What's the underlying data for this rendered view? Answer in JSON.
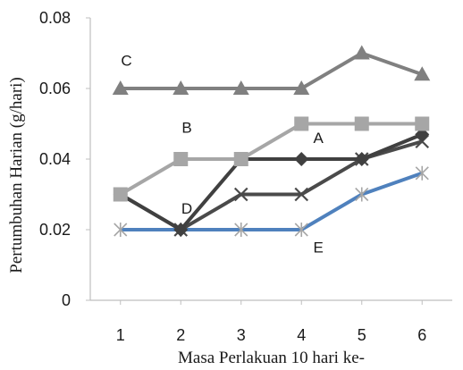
{
  "chart_data": {
    "type": "line",
    "title": "",
    "xlabel": "Masa Perlakuan 10 hari ke-",
    "ylabel": "Pertumbuhan Harian (g/hari)",
    "x": [
      1,
      2,
      3,
      4,
      5,
      6
    ],
    "x_tick_labels": [
      "1",
      "2",
      "3",
      "4",
      "5",
      "6"
    ],
    "y_tick_labels": [
      "0",
      "0.02",
      "0.04",
      "0.06",
      "0.08"
    ],
    "y_ticks": [
      0,
      0.02,
      0.04,
      0.06,
      0.08
    ],
    "ylim": [
      0,
      0.08
    ],
    "xlim": [
      0.5,
      6.5
    ],
    "grid": false,
    "legend": "none",
    "series": [
      {
        "name": "C",
        "values": [
          0.06,
          0.06,
          0.06,
          0.06,
          0.07,
          0.064
        ],
        "color": "#808080",
        "marker": "triangle"
      },
      {
        "name": "B",
        "values": [
          0.03,
          0.04,
          0.04,
          0.05,
          0.05,
          0.05
        ],
        "color": "#a6a6a6",
        "marker": "square"
      },
      {
        "name": "A",
        "values": [
          0.03,
          0.02,
          0.04,
          0.04,
          0.04,
          0.047
        ],
        "color": "#404040",
        "marker": "diamond"
      },
      {
        "name": "D",
        "values": [
          0.03,
          0.02,
          0.03,
          0.03,
          0.04,
          0.045
        ],
        "color": "#4a4a4a",
        "marker": "x"
      },
      {
        "name": "E",
        "values": [
          0.02,
          0.02,
          0.02,
          0.02,
          0.03,
          0.036
        ],
        "color": "#4f81bd",
        "marker": "asterisk"
      }
    ]
  }
}
